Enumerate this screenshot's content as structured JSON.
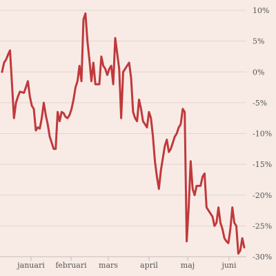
{
  "colors": {
    "background": "#f8ebe6",
    "line": "#c0393b",
    "grid": "#e2d3ce",
    "axis": "#c8b8b3",
    "text": "#555555"
  },
  "chart_data": {
    "type": "line",
    "title": "",
    "xlabel": "",
    "ylabel": "",
    "ylim": [
      -30,
      10
    ],
    "grid": true,
    "y_axis_side": "right",
    "y_ticks": [
      10,
      5,
      0,
      -5,
      -10,
      -15,
      -20,
      -25,
      -30
    ],
    "y_tick_labels": [
      "10%",
      "5%",
      "0%",
      "-5%",
      "-10%",
      "-15%",
      "-20%",
      "-25%",
      "-30%"
    ],
    "x_tick_labels": [
      "januari",
      "februari",
      "mars",
      "april",
      "maj",
      "juni"
    ],
    "series": [
      {
        "values": [
          0.0,
          1.5,
          2.0,
          2.8,
          3.5,
          -2.0,
          -7.5,
          -5.0,
          -4.0,
          -3.2,
          -3.3,
          -3.4,
          -2.5,
          -1.5,
          -4.0,
          -5.5,
          -6.0,
          -9.5,
          -9.0,
          -9.2,
          -7.5,
          -5.0,
          -7.0,
          -8.5,
          -10.5,
          -11.5,
          -12.5,
          -12.5,
          -6.5,
          -8.0,
          -6.5,
          -6.7,
          -7.3,
          -7.5,
          -7.0,
          -6.0,
          -4.5,
          -2.5,
          -1.5,
          1.0,
          -1.5,
          8.5,
          9.5,
          5.0,
          2.0,
          -1.5,
          1.5,
          -2.0,
          -2.0,
          -2.0,
          2.5,
          1.0,
          0.5,
          -0.5,
          0.5,
          1.0,
          -2.0,
          5.5,
          3.0,
          0.5,
          -7.5,
          0.0,
          0.5,
          1.0,
          1.5,
          -1.0,
          -6.5,
          -7.5,
          -8.0,
          -4.5,
          -6.0,
          -8.0,
          -8.5,
          -9.0,
          -6.5,
          -7.5,
          -10.5,
          -14.5,
          -17.0,
          -19.0,
          -16.0,
          -14.0,
          -12.0,
          -11.0,
          -13.0,
          -12.5,
          -11.5,
          -10.5,
          -10.0,
          -9.0,
          -8.5,
          -6.0,
          -6.5,
          -27.5,
          -22.0,
          -14.5,
          -19.0,
          -20.0,
          -18.5,
          -18.5,
          -18.5,
          -17.0,
          -16.5,
          -22.0,
          -22.5,
          -23.0,
          -23.5,
          -25.0,
          -24.5,
          -22.0,
          -24.5,
          -25.5,
          -27.0,
          -27.5,
          -27.8,
          -25.5,
          -22.0,
          -24.5,
          -25.0,
          -29.5,
          -29.0,
          -27.0,
          -28.5
        ]
      }
    ]
  }
}
